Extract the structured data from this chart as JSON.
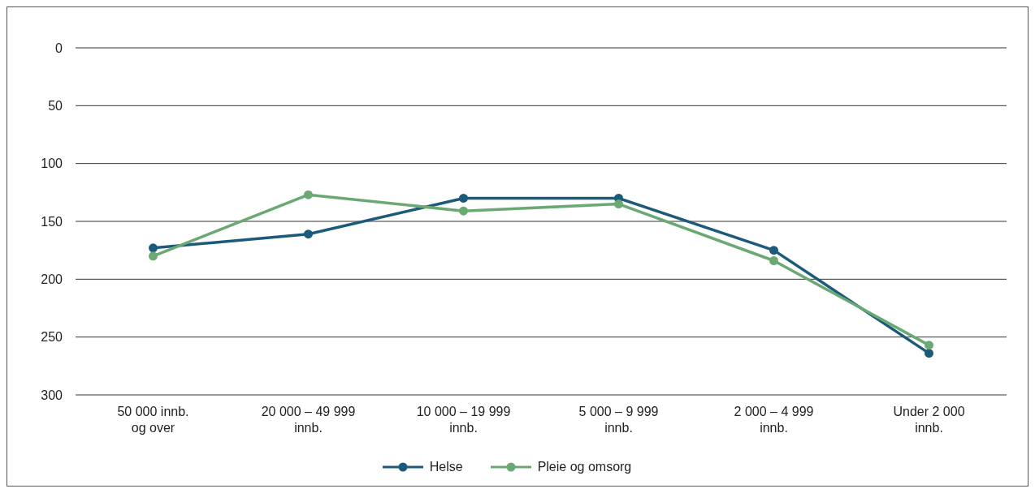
{
  "chart_data": {
    "type": "line",
    "categories": [
      "50 000 innb.\nog over",
      "20 000 – 49 999\ninnb.",
      "10 000 – 19 999\ninnb.",
      "5 000 – 9 999\ninnb.",
      "2 000 – 4 999\ninnb.",
      "Under 2 000\ninnb."
    ],
    "series": [
      {
        "name": "Helse",
        "color": "#1b5a7a",
        "values": [
          173,
          161,
          130,
          130,
          175,
          264
        ]
      },
      {
        "name": "Pleie og omsorg",
        "color": "#6aa874",
        "values": [
          180,
          127,
          141,
          135,
          184,
          257
        ]
      }
    ],
    "ylim": [
      300,
      0
    ],
    "yticks": [
      0,
      50,
      100,
      150,
      200,
      250,
      300
    ],
    "grid": "y",
    "legend": "bottom",
    "marker": "circle",
    "line_style": "solid"
  }
}
